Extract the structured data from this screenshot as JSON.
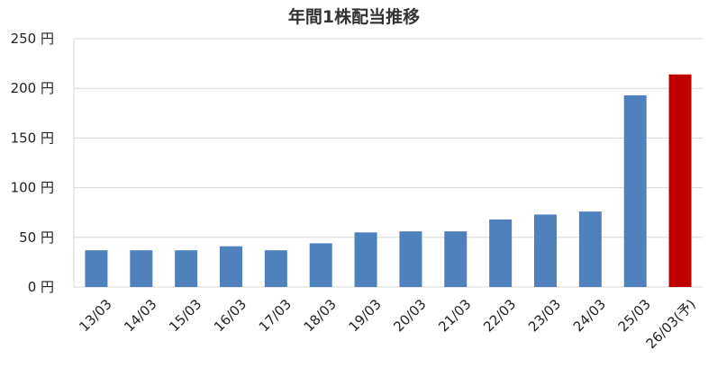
{
  "chart_data": {
    "type": "bar",
    "title": "年間1株配当推移",
    "xlabel": "",
    "ylabel": "",
    "ylim": [
      0,
      250
    ],
    "ytick_values": [
      0,
      50,
      100,
      150,
      200,
      250
    ],
    "ytick_labels": [
      "0 円",
      "50 円",
      "100 円",
      "150 円",
      "200 円",
      "250 円"
    ],
    "categories": [
      "13/03",
      "14/03",
      "15/03",
      "16/03",
      "17/03",
      "18/03",
      "19/03",
      "20/03",
      "21/03",
      "22/03",
      "23/03",
      "24/03",
      "25/03",
      "26/03(予)"
    ],
    "values": [
      37,
      37,
      37,
      41,
      37,
      44,
      55,
      56,
      56,
      68,
      73,
      76,
      193,
      214
    ],
    "grid": true,
    "colors": {
      "actual": "#4f81bd",
      "forecast": "#c00000",
      "grid": "#d9d9d9",
      "axis": "#d9d9d9"
    },
    "forecast_categories": [
      "26/03(予)"
    ]
  }
}
